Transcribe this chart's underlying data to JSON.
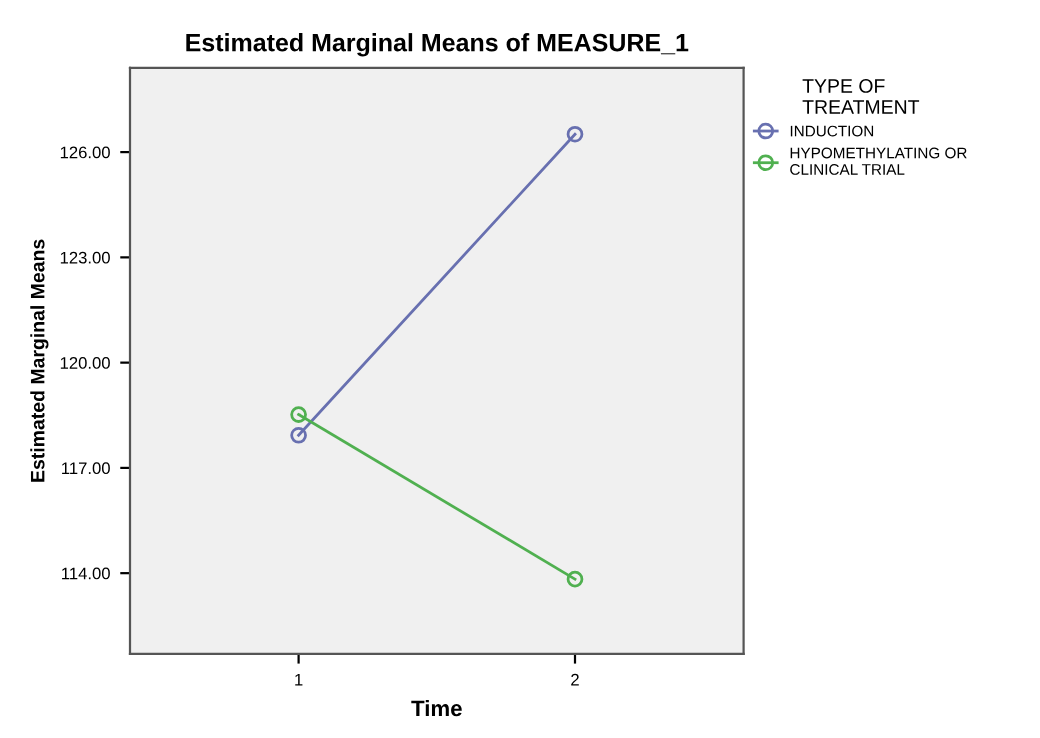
{
  "chart_data": {
    "type": "line",
    "title": "Estimated Marginal Means of MEASURE_1",
    "xlabel": "Time",
    "ylabel": "Estimated Marginal Means",
    "legend_title": "TYPE OF\nTREATMENT",
    "x": [
      1,
      2
    ],
    "series": [
      {
        "name": "INDUCTION",
        "color": "#6870b0",
        "values": [
          117.93,
          126.51
        ]
      },
      {
        "name": "HYPOMETHYLATING OR\nCLINICAL TRIAL",
        "color": "#50b050",
        "values": [
          118.52,
          113.83
        ]
      }
    ],
    "xlim": [
      0.39,
      2.61
    ],
    "xticks": [
      1,
      2
    ],
    "ylim": [
      111.7,
      128.4
    ],
    "yticks": [
      {
        "value": 114,
        "label": "114.00"
      },
      {
        "value": 117,
        "label": "117.00"
      },
      {
        "value": 120,
        "label": "120.00"
      },
      {
        "value": 123,
        "label": "123.00"
      },
      {
        "value": 126,
        "label": "126.00"
      }
    ],
    "marker": "circle",
    "line_style": "solid",
    "grid": false,
    "legend": "right"
  }
}
